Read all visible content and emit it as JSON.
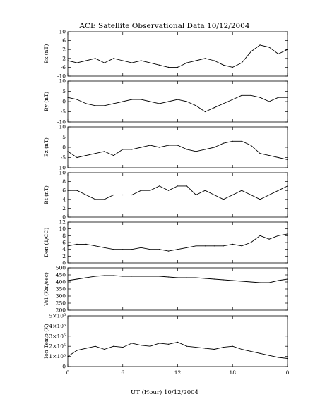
{
  "chart_data": {
    "type": "line",
    "title": "ACE Satellite Observational Data   10/12/2004",
    "xlabel": "UT (Hour)   10/12/2004",
    "x_ticks": [
      "0",
      "6",
      "12",
      "18",
      "0"
    ],
    "xlim": [
      0,
      24
    ],
    "grid": false,
    "panels": [
      {
        "ylabel": "Bx (nT)",
        "ylim": [
          -10,
          10
        ],
        "yticks": [
          "10",
          "6",
          "2",
          "-2",
          "-6",
          "-10"
        ],
        "series": [
          {
            "x": [
              0,
              1,
              2,
              3,
              4,
              5,
              6,
              7,
              8,
              9,
              10,
              11,
              12,
              13,
              14,
              15,
              16,
              17,
              18,
              19,
              20,
              21,
              22,
              23,
              24
            ],
            "values": [
              -3,
              -4,
              -3,
              -2,
              -4,
              -2,
              -3,
              -4,
              -3,
              -4,
              -5,
              -6,
              -6,
              -4,
              -3,
              -2,
              -3,
              -5,
              -6,
              -4,
              1,
              4,
              3,
              0,
              2
            ]
          }
        ]
      },
      {
        "ylabel": "By (nT)",
        "ylim": [
          -10,
          10
        ],
        "yticks": [
          "10",
          "5",
          "0",
          "-5",
          "-10"
        ],
        "series": [
          {
            "x": [
              0,
              1,
              2,
              3,
              4,
              5,
              6,
              7,
              8,
              9,
              10,
              11,
              12,
              13,
              14,
              15,
              16,
              17,
              18,
              19,
              20,
              21,
              22,
              23,
              24
            ],
            "values": [
              2,
              1,
              -1,
              -2,
              -2,
              -1,
              0,
              1,
              1,
              0,
              -1,
              0,
              1,
              0,
              -2,
              -5,
              -3,
              -1,
              1,
              3,
              3,
              2,
              0,
              2,
              2
            ]
          }
        ]
      },
      {
        "ylabel": "Bz (nT)",
        "ylim": [
          -10,
          10
        ],
        "yticks": [
          "10",
          "5",
          "0",
          "-5",
          "-10"
        ],
        "series": [
          {
            "x": [
              0,
              1,
              2,
              3,
              4,
              5,
              6,
              7,
              8,
              9,
              10,
              11,
              12,
              13,
              14,
              15,
              16,
              17,
              18,
              19,
              20,
              21,
              22,
              23,
              24
            ],
            "values": [
              -2,
              -5,
              -4,
              -3,
              -2,
              -4,
              -1,
              -1,
              0,
              1,
              0,
              1,
              1,
              -1,
              -2,
              -1,
              0,
              2,
              3,
              3,
              1,
              -3,
              -4,
              -5,
              -6
            ]
          }
        ]
      },
      {
        "ylabel": "Bt (nT)",
        "ylim": [
          0,
          10
        ],
        "yticks": [
          "10",
          "8",
          "6",
          "4",
          "2",
          "0"
        ],
        "series": [
          {
            "x": [
              0,
              1,
              2,
              3,
              4,
              5,
              6,
              7,
              8,
              9,
              10,
              11,
              12,
              13,
              14,
              15,
              16,
              17,
              18,
              19,
              20,
              21,
              22,
              23,
              24
            ],
            "values": [
              6,
              6,
              5,
              4,
              4,
              5,
              5,
              5,
              6,
              6,
              7,
              6,
              7,
              7,
              5,
              6,
              5,
              4,
              5,
              6,
              5,
              4,
              5,
              6,
              7
            ]
          }
        ]
      },
      {
        "ylabel": "Den (1/CC)",
        "ylim": [
          0,
          12
        ],
        "yticks": [
          "12",
          "10",
          "8",
          "6",
          "4",
          "2",
          "0"
        ],
        "series": [
          {
            "x": [
              0,
              1,
              2,
              3,
              4,
              5,
              6,
              7,
              8,
              9,
              10,
              11,
              12,
              13,
              14,
              15,
              16,
              17,
              18,
              19,
              20,
              21,
              22,
              23,
              24
            ],
            "values": [
              5,
              5.5,
              5.5,
              5,
              4.5,
              4,
              4,
              4,
              4.5,
              4,
              4,
              3.5,
              4,
              4.5,
              5,
              5,
              5,
              5,
              5.5,
              5,
              6,
              8,
              7,
              8,
              8.5
            ]
          }
        ]
      },
      {
        "ylabel": "Vel (Km/sec)",
        "ylim": [
          200,
          500
        ],
        "yticks": [
          "500",
          "450",
          "400",
          "350",
          "300",
          "250",
          "200"
        ],
        "series": [
          {
            "x": [
              0,
              1,
              2,
              3,
              4,
              5,
              6,
              7,
              8,
              9,
              10,
              11,
              12,
              13,
              14,
              15,
              16,
              17,
              18,
              19,
              20,
              21,
              22,
              23,
              24
            ],
            "values": [
              410,
              420,
              430,
              440,
              445,
              445,
              440,
              440,
              440,
              440,
              440,
              435,
              430,
              430,
              430,
              425,
              420,
              415,
              410,
              405,
              400,
              395,
              395,
              410,
              420
            ]
          }
        ]
      },
      {
        "ylabel": "Ion Temp (K)",
        "ylim": [
          0,
          500000
        ],
        "yticks": [
          "5×10⁵",
          "4×10⁵",
          "3×10⁵",
          "2×10⁵",
          "1×10⁵",
          "0"
        ],
        "log": false,
        "series": [
          {
            "x": [
              0,
              1,
              2,
              3,
              4,
              5,
              6,
              7,
              8,
              9,
              10,
              11,
              12,
              13,
              14,
              15,
              16,
              17,
              18,
              19,
              20,
              21,
              22,
              23,
              24
            ],
            "values": [
              100000,
              160000,
              180000,
              200000,
              170000,
              200000,
              190000,
              230000,
              210000,
              200000,
              230000,
              220000,
              240000,
              200000,
              190000,
              180000,
              170000,
              190000,
              200000,
              170000,
              150000,
              130000,
              110000,
              90000,
              80000
            ]
          }
        ]
      }
    ]
  }
}
